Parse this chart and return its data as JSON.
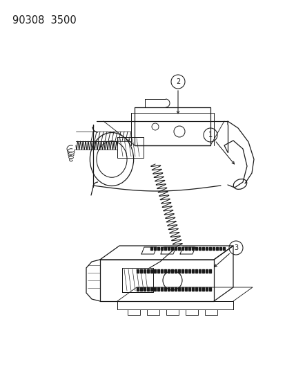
{
  "title_text": "90308  3500",
  "background_color": "#ffffff",
  "line_color": "#1a1a1a",
  "figsize": [
    4.14,
    5.33
  ],
  "dpi": 100,
  "title_fontsize": 10.5
}
